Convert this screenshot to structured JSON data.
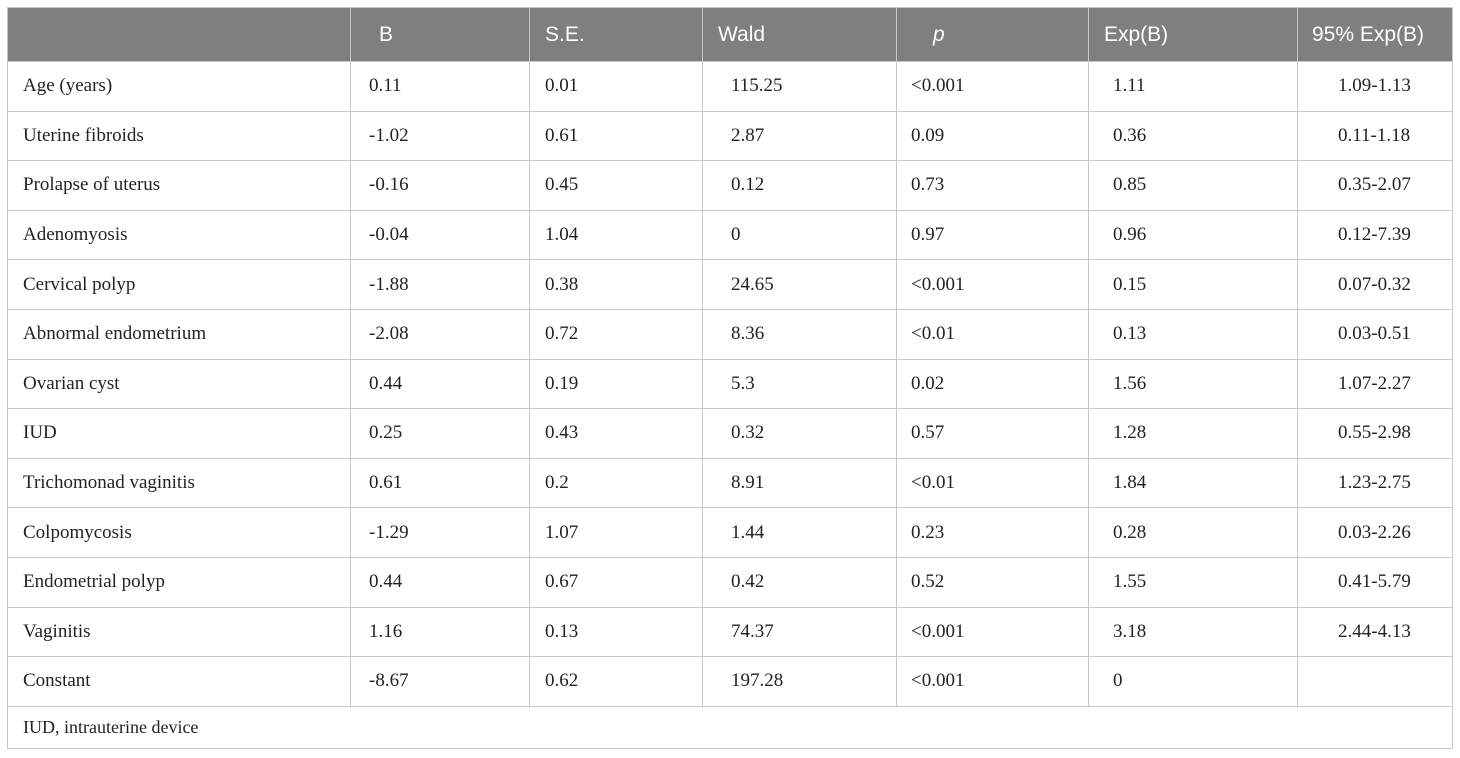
{
  "header": [
    "",
    "B",
    "S.E.",
    "Wald",
    "p",
    "Exp(B)",
    "95% Exp(B)"
  ],
  "rows": [
    [
      "Age (years)",
      "0.11",
      "0.01",
      "115.25",
      "<0.001",
      "1.11",
      "1.09-1.13"
    ],
    [
      "Uterine fibroids",
      "-1.02",
      "0.61",
      "2.87",
      "0.09",
      "0.36",
      "0.11-1.18"
    ],
    [
      "Prolapse of uterus",
      "-0.16",
      "0.45",
      "0.12",
      "0.73",
      "0.85",
      "0.35-2.07"
    ],
    [
      "Adenomyosis",
      "-0.04",
      "1.04",
      "0",
      "0.97",
      "0.96",
      "0.12-7.39"
    ],
    [
      "Cervical polyp",
      "-1.88",
      "0.38",
      "24.65",
      "<0.001",
      "0.15",
      "0.07-0.32"
    ],
    [
      "Abnormal endometrium",
      "-2.08",
      "0.72",
      "8.36",
      "<0.01",
      "0.13",
      "0.03-0.51"
    ],
    [
      "Ovarian cyst",
      "0.44",
      "0.19",
      "5.3",
      "0.02",
      "1.56",
      "1.07-2.27"
    ],
    [
      "IUD",
      "0.25",
      "0.43",
      "0.32",
      "0.57",
      "1.28",
      "0.55-2.98"
    ],
    [
      "Trichomonad vaginitis",
      "0.61",
      "0.2",
      "8.91",
      "<0.01",
      "1.84",
      "1.23-2.75"
    ],
    [
      "Colpomycosis",
      "-1.29",
      "1.07",
      "1.44",
      "0.23",
      "0.28",
      "0.03-2.26"
    ],
    [
      "Endometrial polyp",
      "0.44",
      "0.67",
      "0.42",
      "0.52",
      "1.55",
      "0.41-5.79"
    ],
    [
      "Vaginitis",
      "1.16",
      "0.13",
      "74.37",
      "<0.001",
      "3.18",
      "2.44-4.13"
    ],
    [
      "Constant",
      "-8.67",
      "0.62",
      "197.28",
      "<0.001",
      "0",
      ""
    ]
  ],
  "footnote": "IUD, intrauterine device"
}
